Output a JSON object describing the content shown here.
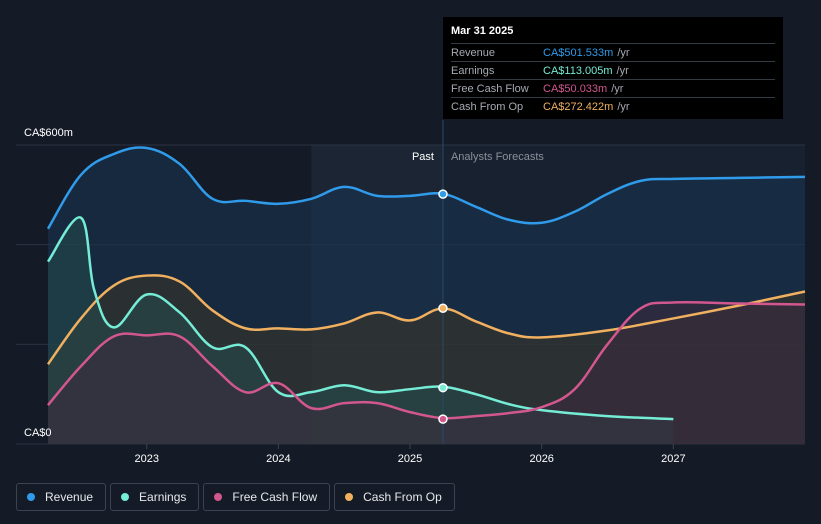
{
  "tooltip": {
    "date": "Mar 31 2025",
    "rows": [
      {
        "label": "Revenue",
        "value": "CA$501.533m",
        "unit": "/yr",
        "color": "#2f9bea"
      },
      {
        "label": "Earnings",
        "value": "CA$113.005m",
        "unit": "/yr",
        "color": "#74ecd6"
      },
      {
        "label": "Free Cash Flow",
        "value": "CA$50.033m",
        "unit": "/yr",
        "color": "#d2578f"
      },
      {
        "label": "Cash From Op",
        "value": "CA$272.422m",
        "unit": "/yr",
        "color": "#f0b060"
      }
    ]
  },
  "legend": [
    {
      "label": "Revenue",
      "color": "#2f9bea"
    },
    {
      "label": "Earnings",
      "color": "#74ecd6"
    },
    {
      "label": "Free Cash Flow",
      "color": "#d2578f"
    },
    {
      "label": "Cash From Op",
      "color": "#f0b060"
    }
  ],
  "chart_data": {
    "type": "area",
    "title": "",
    "y_axis_top_label": "CA$600m",
    "y_axis_bottom_label": "CA$0",
    "ylim": [
      0,
      600
    ],
    "xlim": [
      2022.25,
      2028.0
    ],
    "past_label": "Past",
    "forecast_label": "Analysts Forecasts",
    "forecast_start": 2025.25,
    "highlight_start": 2024.25,
    "x_ticks": [
      {
        "value": 2023.0,
        "label": "2023"
      },
      {
        "value": 2024.0,
        "label": "2024"
      },
      {
        "value": 2025.0,
        "label": "2025"
      },
      {
        "value": 2026.0,
        "label": "2026"
      },
      {
        "value": 2027.0,
        "label": "2027"
      }
    ],
    "marker_x": 2025.25,
    "series": [
      {
        "name": "Revenue",
        "color": "#2f9bea",
        "fill": "#173552",
        "marker": 501.5,
        "points": [
          [
            2022.25,
            432
          ],
          [
            2022.5,
            540
          ],
          [
            2022.75,
            582
          ],
          [
            2023.0,
            594
          ],
          [
            2023.25,
            562
          ],
          [
            2023.5,
            492
          ],
          [
            2023.75,
            488
          ],
          [
            2024.0,
            482
          ],
          [
            2024.25,
            492
          ],
          [
            2024.5,
            516
          ],
          [
            2024.75,
            498
          ],
          [
            2025.0,
            498
          ],
          [
            2025.25,
            502
          ],
          [
            2025.5,
            476
          ],
          [
            2025.75,
            450
          ],
          [
            2026.0,
            444
          ],
          [
            2026.25,
            466
          ],
          [
            2026.5,
            502
          ],
          [
            2026.75,
            528
          ],
          [
            2027.0,
            532
          ],
          [
            2027.5,
            534
          ],
          [
            2028.0,
            536
          ]
        ]
      },
      {
        "name": "Cash From Op",
        "color": "#f0b060",
        "fill": "#3d3428",
        "marker": 272.4,
        "points": [
          [
            2022.25,
            160
          ],
          [
            2022.5,
            252
          ],
          [
            2022.75,
            318
          ],
          [
            2023.0,
            338
          ],
          [
            2023.25,
            326
          ],
          [
            2023.5,
            268
          ],
          [
            2023.75,
            232
          ],
          [
            2024.0,
            232
          ],
          [
            2024.25,
            230
          ],
          [
            2024.5,
            242
          ],
          [
            2024.75,
            264
          ],
          [
            2025.0,
            248
          ],
          [
            2025.25,
            272
          ],
          [
            2025.5,
            246
          ],
          [
            2025.75,
            222
          ],
          [
            2026.0,
            214
          ],
          [
            2026.5,
            228
          ],
          [
            2027.0,
            252
          ],
          [
            2027.5,
            278
          ],
          [
            2028.0,
            306
          ]
        ]
      },
      {
        "name": "Earnings",
        "color": "#74ecd6",
        "fill": "#244d4d",
        "marker": 113.0,
        "points": [
          [
            2022.25,
            366
          ],
          [
            2022.5,
            454
          ],
          [
            2022.6,
            310
          ],
          [
            2022.75,
            234
          ],
          [
            2023.0,
            300
          ],
          [
            2023.25,
            264
          ],
          [
            2023.5,
            194
          ],
          [
            2023.75,
            194
          ],
          [
            2024.0,
            104
          ],
          [
            2024.25,
            104
          ],
          [
            2024.5,
            118
          ],
          [
            2024.75,
            104
          ],
          [
            2025.0,
            110
          ],
          [
            2025.25,
            115
          ],
          [
            2025.5,
            100
          ],
          [
            2025.75,
            80
          ],
          [
            2026.0,
            68
          ],
          [
            2026.5,
            56
          ],
          [
            2027.0,
            50
          ]
        ]
      },
      {
        "name": "Free Cash Flow",
        "color": "#d2578f",
        "fill": "#3c2a3c",
        "marker": 50.0,
        "points": [
          [
            2022.25,
            78
          ],
          [
            2022.5,
            156
          ],
          [
            2022.75,
            216
          ],
          [
            2023.0,
            218
          ],
          [
            2023.25,
            216
          ],
          [
            2023.5,
            156
          ],
          [
            2023.75,
            104
          ],
          [
            2024.0,
            122
          ],
          [
            2024.25,
            72
          ],
          [
            2024.5,
            82
          ],
          [
            2024.75,
            82
          ],
          [
            2025.0,
            64
          ],
          [
            2025.25,
            52
          ],
          [
            2025.5,
            56
          ],
          [
            2025.75,
            62
          ],
          [
            2026.0,
            74
          ],
          [
            2026.25,
            110
          ],
          [
            2026.5,
            200
          ],
          [
            2026.75,
            272
          ],
          [
            2027.0,
            284
          ],
          [
            2027.5,
            282
          ],
          [
            2028.0,
            280
          ]
        ]
      }
    ]
  }
}
